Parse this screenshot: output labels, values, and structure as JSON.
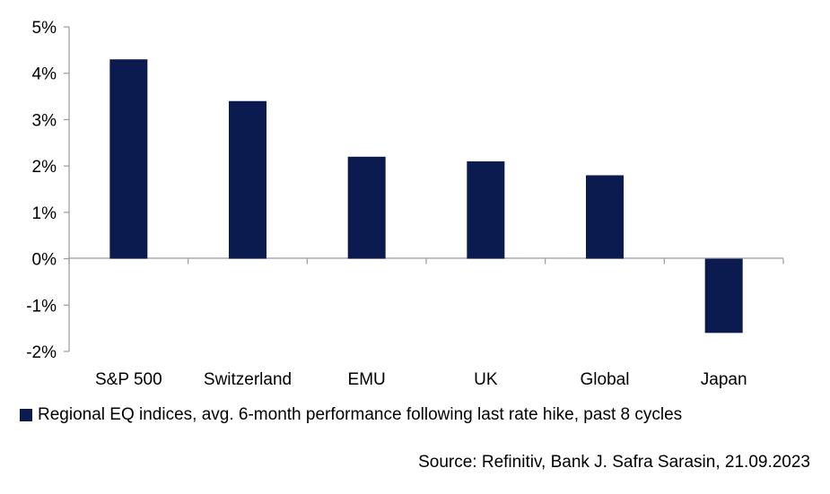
{
  "chart_data": {
    "type": "bar",
    "categories": [
      "S&P 500",
      "Switzerland",
      "EMU",
      "UK",
      "Global",
      "Japan"
    ],
    "series": [
      {
        "name": "Regional EQ indices, avg. 6-month performance following last rate hike, past 8 cycles",
        "values": [
          4.3,
          3.4,
          2.2,
          2.1,
          1.8,
          -1.6
        ],
        "color": "#0b1a4f"
      }
    ],
    "yticks": [
      5,
      4,
      3,
      2,
      1,
      0,
      -1,
      -2
    ],
    "ytick_labels": [
      "5%",
      "4%",
      "3%",
      "2%",
      "1%",
      "0%",
      "-1%",
      "-2%"
    ],
    "ylim": [
      -2,
      5
    ],
    "grid": false,
    "legend_position": "bottom-left",
    "title": "",
    "xlabel": "",
    "ylabel": ""
  },
  "legend": {
    "label": "Regional EQ indices, avg. 6-month performance following last rate hike, past 8 cycles"
  },
  "source": "Source: Refinitiv, Bank J. Safra Sarasin, 21.09.2023"
}
